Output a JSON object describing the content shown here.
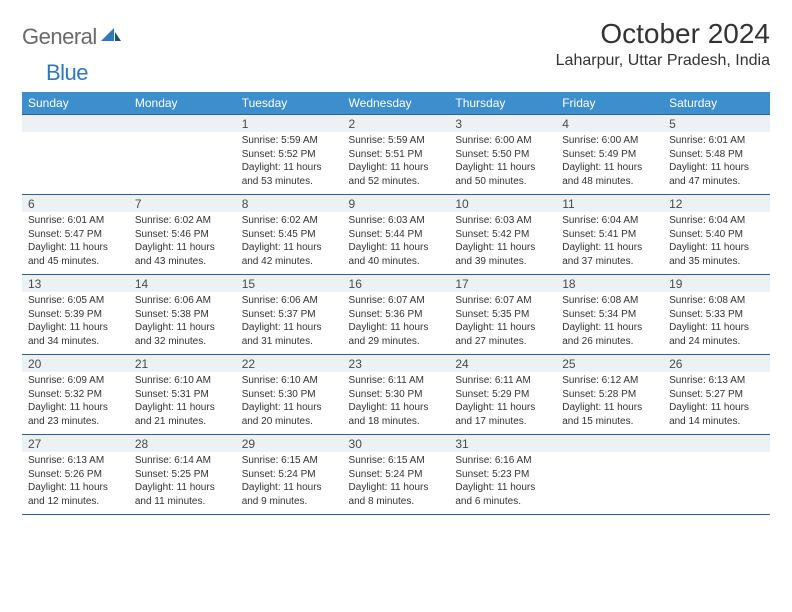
{
  "logo": {
    "text1": "General",
    "text2": "Blue"
  },
  "title": "October 2024",
  "location": "Laharpur, Uttar Pradesh, India",
  "colors": {
    "header_bg": "#3c8ecc",
    "header_text": "#ffffff",
    "row_border": "#2f5e8a",
    "daynum_bg": "#edf1f4",
    "logo_gray": "#6a6a6a",
    "logo_blue": "#2f78bc"
  },
  "fonts": {
    "title_size": 28,
    "location_size": 16,
    "header_size": 12,
    "cell_size": 10
  },
  "day_names": [
    "Sunday",
    "Monday",
    "Tuesday",
    "Wednesday",
    "Thursday",
    "Friday",
    "Saturday"
  ],
  "weeks": [
    {
      "nums": [
        "",
        "",
        "1",
        "2",
        "3",
        "4",
        "5"
      ],
      "cells": [
        [],
        [],
        [
          "Sunrise: 5:59 AM",
          "Sunset: 5:52 PM",
          "Daylight: 11 hours",
          "and 53 minutes."
        ],
        [
          "Sunrise: 5:59 AM",
          "Sunset: 5:51 PM",
          "Daylight: 11 hours",
          "and 52 minutes."
        ],
        [
          "Sunrise: 6:00 AM",
          "Sunset: 5:50 PM",
          "Daylight: 11 hours",
          "and 50 minutes."
        ],
        [
          "Sunrise: 6:00 AM",
          "Sunset: 5:49 PM",
          "Daylight: 11 hours",
          "and 48 minutes."
        ],
        [
          "Sunrise: 6:01 AM",
          "Sunset: 5:48 PM",
          "Daylight: 11 hours",
          "and 47 minutes."
        ]
      ]
    },
    {
      "nums": [
        "6",
        "7",
        "8",
        "9",
        "10",
        "11",
        "12"
      ],
      "cells": [
        [
          "Sunrise: 6:01 AM",
          "Sunset: 5:47 PM",
          "Daylight: 11 hours",
          "and 45 minutes."
        ],
        [
          "Sunrise: 6:02 AM",
          "Sunset: 5:46 PM",
          "Daylight: 11 hours",
          "and 43 minutes."
        ],
        [
          "Sunrise: 6:02 AM",
          "Sunset: 5:45 PM",
          "Daylight: 11 hours",
          "and 42 minutes."
        ],
        [
          "Sunrise: 6:03 AM",
          "Sunset: 5:44 PM",
          "Daylight: 11 hours",
          "and 40 minutes."
        ],
        [
          "Sunrise: 6:03 AM",
          "Sunset: 5:42 PM",
          "Daylight: 11 hours",
          "and 39 minutes."
        ],
        [
          "Sunrise: 6:04 AM",
          "Sunset: 5:41 PM",
          "Daylight: 11 hours",
          "and 37 minutes."
        ],
        [
          "Sunrise: 6:04 AM",
          "Sunset: 5:40 PM",
          "Daylight: 11 hours",
          "and 35 minutes."
        ]
      ]
    },
    {
      "nums": [
        "13",
        "14",
        "15",
        "16",
        "17",
        "18",
        "19"
      ],
      "cells": [
        [
          "Sunrise: 6:05 AM",
          "Sunset: 5:39 PM",
          "Daylight: 11 hours",
          "and 34 minutes."
        ],
        [
          "Sunrise: 6:06 AM",
          "Sunset: 5:38 PM",
          "Daylight: 11 hours",
          "and 32 minutes."
        ],
        [
          "Sunrise: 6:06 AM",
          "Sunset: 5:37 PM",
          "Daylight: 11 hours",
          "and 31 minutes."
        ],
        [
          "Sunrise: 6:07 AM",
          "Sunset: 5:36 PM",
          "Daylight: 11 hours",
          "and 29 minutes."
        ],
        [
          "Sunrise: 6:07 AM",
          "Sunset: 5:35 PM",
          "Daylight: 11 hours",
          "and 27 minutes."
        ],
        [
          "Sunrise: 6:08 AM",
          "Sunset: 5:34 PM",
          "Daylight: 11 hours",
          "and 26 minutes."
        ],
        [
          "Sunrise: 6:08 AM",
          "Sunset: 5:33 PM",
          "Daylight: 11 hours",
          "and 24 minutes."
        ]
      ]
    },
    {
      "nums": [
        "20",
        "21",
        "22",
        "23",
        "24",
        "25",
        "26"
      ],
      "cells": [
        [
          "Sunrise: 6:09 AM",
          "Sunset: 5:32 PM",
          "Daylight: 11 hours",
          "and 23 minutes."
        ],
        [
          "Sunrise: 6:10 AM",
          "Sunset: 5:31 PM",
          "Daylight: 11 hours",
          "and 21 minutes."
        ],
        [
          "Sunrise: 6:10 AM",
          "Sunset: 5:30 PM",
          "Daylight: 11 hours",
          "and 20 minutes."
        ],
        [
          "Sunrise: 6:11 AM",
          "Sunset: 5:30 PM",
          "Daylight: 11 hours",
          "and 18 minutes."
        ],
        [
          "Sunrise: 6:11 AM",
          "Sunset: 5:29 PM",
          "Daylight: 11 hours",
          "and 17 minutes."
        ],
        [
          "Sunrise: 6:12 AM",
          "Sunset: 5:28 PM",
          "Daylight: 11 hours",
          "and 15 minutes."
        ],
        [
          "Sunrise: 6:13 AM",
          "Sunset: 5:27 PM",
          "Daylight: 11 hours",
          "and 14 minutes."
        ]
      ]
    },
    {
      "nums": [
        "27",
        "28",
        "29",
        "30",
        "31",
        "",
        ""
      ],
      "cells": [
        [
          "Sunrise: 6:13 AM",
          "Sunset: 5:26 PM",
          "Daylight: 11 hours",
          "and 12 minutes."
        ],
        [
          "Sunrise: 6:14 AM",
          "Sunset: 5:25 PM",
          "Daylight: 11 hours",
          "and 11 minutes."
        ],
        [
          "Sunrise: 6:15 AM",
          "Sunset: 5:24 PM",
          "Daylight: 11 hours",
          "and 9 minutes."
        ],
        [
          "Sunrise: 6:15 AM",
          "Sunset: 5:24 PM",
          "Daylight: 11 hours",
          "and 8 minutes."
        ],
        [
          "Sunrise: 6:16 AM",
          "Sunset: 5:23 PM",
          "Daylight: 11 hours",
          "and 6 minutes."
        ],
        [],
        []
      ]
    }
  ]
}
